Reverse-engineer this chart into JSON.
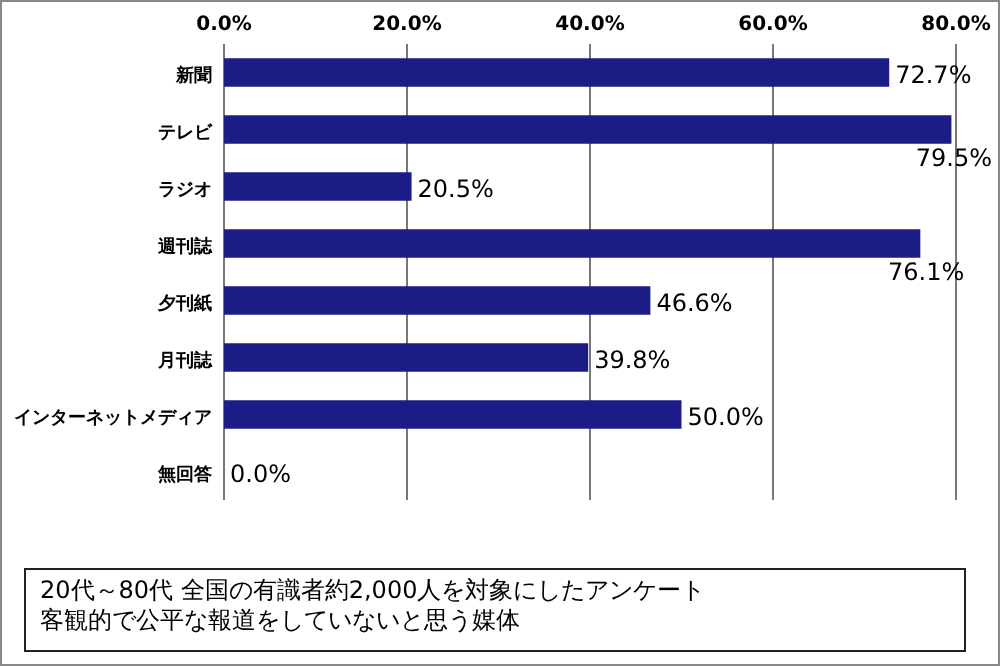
{
  "chart_data": {
    "type": "bar",
    "orientation": "horizontal",
    "categories": [
      "新聞",
      "テレビ",
      "ラジオ",
      "週刊誌",
      "夕刊紙",
      "月刊誌",
      "インターネットメディア",
      "無回答"
    ],
    "values": [
      72.7,
      79.5,
      20.5,
      76.1,
      46.6,
      39.8,
      50.0,
      0.0
    ],
    "value_labels": [
      "72.7%",
      "79.5%",
      "20.5%",
      "76.1%",
      "46.6%",
      "39.8%",
      "50.0%",
      "0.0%"
    ],
    "color": "#1c1c86",
    "xlim": [
      0,
      80
    ],
    "xticks": [
      {
        "value": 0,
        "label": "0.0%"
      },
      {
        "value": 20,
        "label": "20.0%"
      },
      {
        "value": 40,
        "label": "40.0%"
      },
      {
        "value": 60,
        "label": "60.0%"
      },
      {
        "value": 80,
        "label": "80.0%"
      }
    ],
    "grid": "x",
    "annotations": [
      "20代～80代 全国の有識者約2,000人を対象にしたアンケート",
      "客観的で公平な報道をしていないと思う媒体"
    ]
  }
}
